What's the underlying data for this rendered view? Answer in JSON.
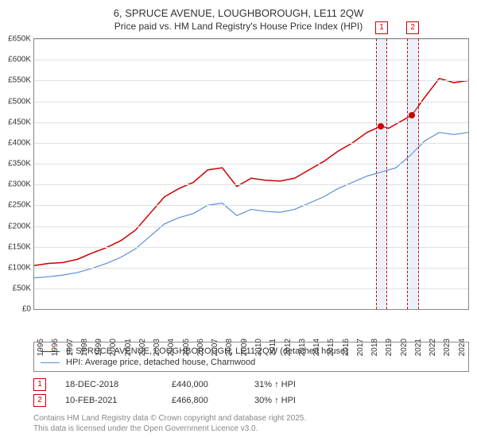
{
  "title": "6, SPRUCE AVENUE, LOUGHBOROUGH, LE11 2QW",
  "subtitle": "Price paid vs. HM Land Registry's House Price Index (HPI)",
  "chart": {
    "type": "line",
    "background_color": "#ffffff",
    "grid_color": "#e0e0e0",
    "border_color": "#888888",
    "y": {
      "min": 0,
      "max": 650000,
      "step": 50000,
      "ticks": [
        "£0",
        "£50K",
        "£100K",
        "£150K",
        "£200K",
        "£250K",
        "£300K",
        "£350K",
        "£400K",
        "£450K",
        "£500K",
        "£550K",
        "£600K",
        "£650K"
      ]
    },
    "x": {
      "min": 1995,
      "max": 2025,
      "ticks": [
        1995,
        1996,
        1997,
        1998,
        1999,
        2000,
        2001,
        2002,
        2003,
        2004,
        2005,
        2006,
        2007,
        2008,
        2009,
        2010,
        2011,
        2012,
        2013,
        2014,
        2015,
        2016,
        2017,
        2018,
        2019,
        2020,
        2021,
        2022,
        2023,
        2024
      ]
    },
    "series": [
      {
        "name": "6, SPRUCE AVENUE, LOUGHBOROUGH, LE11 2QW (detached house)",
        "color": "#cc0000",
        "line_width": 1.5,
        "data": [
          [
            1995,
            105000
          ],
          [
            1996,
            110000
          ],
          [
            1997,
            112000
          ],
          [
            1998,
            120000
          ],
          [
            1999,
            135000
          ],
          [
            2000,
            148000
          ],
          [
            2001,
            165000
          ],
          [
            2002,
            190000
          ],
          [
            2003,
            230000
          ],
          [
            2004,
            270000
          ],
          [
            2005,
            290000
          ],
          [
            2006,
            305000
          ],
          [
            2007,
            335000
          ],
          [
            2008,
            340000
          ],
          [
            2009,
            295000
          ],
          [
            2010,
            315000
          ],
          [
            2011,
            310000
          ],
          [
            2012,
            308000
          ],
          [
            2013,
            315000
          ],
          [
            2014,
            335000
          ],
          [
            2015,
            355000
          ],
          [
            2016,
            380000
          ],
          [
            2017,
            400000
          ],
          [
            2018,
            425000
          ],
          [
            2018.96,
            440000
          ],
          [
            2019.5,
            435000
          ],
          [
            2020,
            445000
          ],
          [
            2021.11,
            466800
          ],
          [
            2022,
            510000
          ],
          [
            2023,
            555000
          ],
          [
            2024,
            545000
          ],
          [
            2025,
            550000
          ]
        ]
      },
      {
        "name": "HPI: Average price, detached house, Charnwood",
        "color": "#5b8fd6",
        "line_width": 1.2,
        "data": [
          [
            1995,
            75000
          ],
          [
            1996,
            78000
          ],
          [
            1997,
            82000
          ],
          [
            1998,
            88000
          ],
          [
            1999,
            98000
          ],
          [
            2000,
            110000
          ],
          [
            2001,
            125000
          ],
          [
            2002,
            145000
          ],
          [
            2003,
            175000
          ],
          [
            2004,
            205000
          ],
          [
            2005,
            220000
          ],
          [
            2006,
            230000
          ],
          [
            2007,
            250000
          ],
          [
            2008,
            255000
          ],
          [
            2009,
            225000
          ],
          [
            2010,
            240000
          ],
          [
            2011,
            235000
          ],
          [
            2012,
            233000
          ],
          [
            2013,
            240000
          ],
          [
            2014,
            255000
          ],
          [
            2015,
            270000
          ],
          [
            2016,
            290000
          ],
          [
            2017,
            305000
          ],
          [
            2018,
            320000
          ],
          [
            2019,
            330000
          ],
          [
            2020,
            340000
          ],
          [
            2021,
            370000
          ],
          [
            2022,
            405000
          ],
          [
            2023,
            425000
          ],
          [
            2024,
            420000
          ],
          [
            2025,
            425000
          ]
        ]
      }
    ],
    "markers": [
      {
        "num": "1",
        "x": 2018.96,
        "y": 440000,
        "band_width": 0.7,
        "color": "#cc0000"
      },
      {
        "num": "2",
        "x": 2021.11,
        "y": 466800,
        "band_width": 0.7,
        "color": "#cc0000"
      }
    ]
  },
  "legend": {
    "items": [
      {
        "color": "#cc0000",
        "label": "6, SPRUCE AVENUE, LOUGHBOROUGH, LE11 2QW (detached house)"
      },
      {
        "color": "#5b8fd6",
        "label": "HPI: Average price, detached house, Charnwood"
      }
    ]
  },
  "marker_table": [
    {
      "num": "1",
      "date": "18-DEC-2018",
      "price": "£440,000",
      "pct": "31% ↑ HPI"
    },
    {
      "num": "2",
      "date": "10-FEB-2021",
      "price": "£466,800",
      "pct": "30% ↑ HPI"
    }
  ],
  "license": {
    "line1": "Contains HM Land Registry data © Crown copyright and database right 2025.",
    "line2": "This data is licensed under the Open Government Licence v3.0."
  }
}
